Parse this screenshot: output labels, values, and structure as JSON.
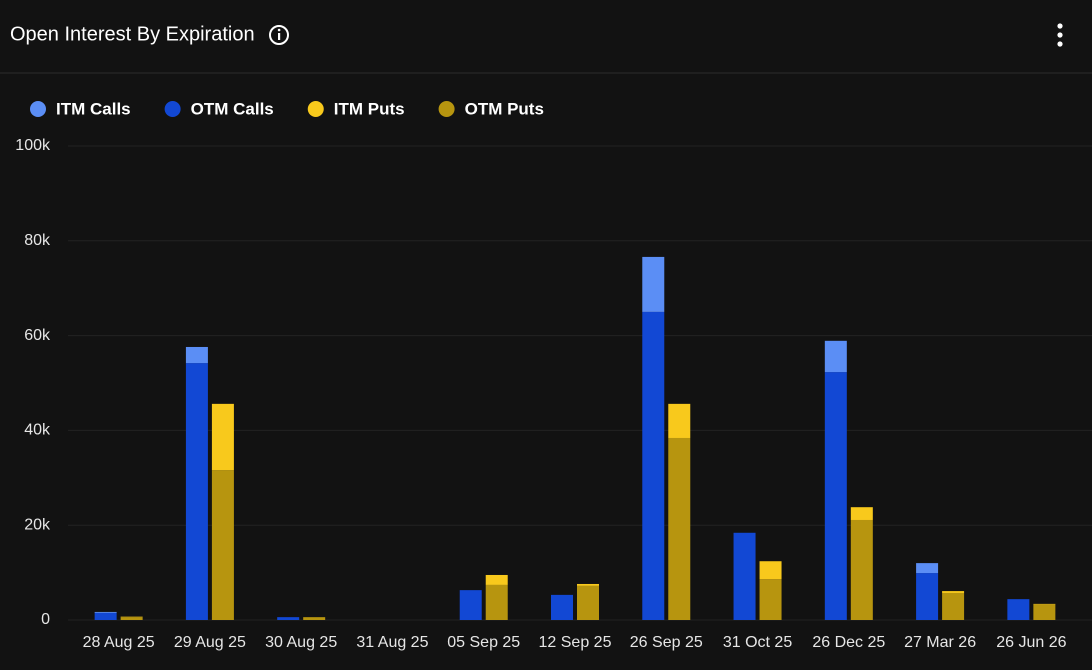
{
  "chart_data": {
    "type": "bar",
    "title": "Open Interest By Expiration",
    "categories": [
      "28 Aug 25",
      "29 Aug 25",
      "30 Aug 25",
      "31 Aug 25",
      "05 Sep 25",
      "12 Sep 25",
      "26 Sep 25",
      "31 Oct 25",
      "26 Dec 25",
      "27 Mar 26",
      "26 Jun 26"
    ],
    "series": [
      {
        "name": "ITM Calls",
        "color": "#5b8ef5",
        "values": [
          200,
          3400,
          0,
          0,
          0,
          0,
          11600,
          0,
          6600,
          2100,
          0
        ]
      },
      {
        "name": "OTM Calls",
        "color": "#1248d4",
        "values": [
          1500,
          54200,
          600,
          0,
          6300,
          5300,
          65000,
          18400,
          52300,
          9900,
          4400
        ]
      },
      {
        "name": "ITM Puts",
        "color": "#f8c91c",
        "values": [
          100,
          14000,
          0,
          0,
          2100,
          400,
          7200,
          3800,
          2700,
          400,
          100
        ]
      },
      {
        "name": "OTM Puts",
        "color": "#b7950f",
        "values": [
          600,
          31600,
          600,
          0,
          7400,
          7200,
          38400,
          8600,
          21100,
          5700,
          3300
        ]
      }
    ],
    "ylim": [
      0,
      100000
    ],
    "yticks": [
      0,
      {
        "value": 20000,
        "label": "20k"
      },
      {
        "value": 40000,
        "label": "40k"
      },
      {
        "value": 60000,
        "label": "60k"
      },
      {
        "value": 80000,
        "label": "80k"
      },
      {
        "value": 100000,
        "label": "100k"
      }
    ],
    "grid": true,
    "legend": "top"
  }
}
